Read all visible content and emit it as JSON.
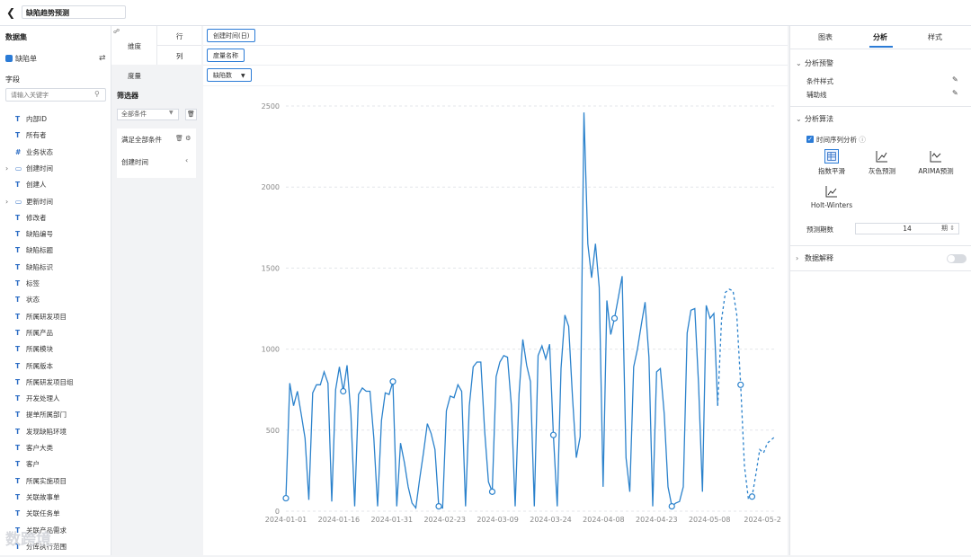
{
  "header": {
    "title": "缺陷趋势预测"
  },
  "left": {
    "dataset_title": "数据集",
    "dataset_name": "缺陷单",
    "fields_title": "字段",
    "search_placeholder": "请输入关键字",
    "fields": [
      {
        "icon": "T",
        "name": "内部ID",
        "caret": ""
      },
      {
        "icon": "T",
        "name": "所有者",
        "caret": ""
      },
      {
        "icon": "#",
        "name": "业务状态",
        "caret": ""
      },
      {
        "icon": "▭",
        "name": "创建时间",
        "caret": "›"
      },
      {
        "icon": "T",
        "name": "创建人",
        "caret": ""
      },
      {
        "icon": "▭",
        "name": "更新时间",
        "caret": "›"
      },
      {
        "icon": "T",
        "name": "修改者",
        "caret": ""
      },
      {
        "icon": "T",
        "name": "缺陷编号",
        "caret": ""
      },
      {
        "icon": "T",
        "name": "缺陷标题",
        "caret": ""
      },
      {
        "icon": "T",
        "name": "缺陷标识",
        "caret": ""
      },
      {
        "icon": "T",
        "name": "标签",
        "caret": ""
      },
      {
        "icon": "T",
        "name": "状态",
        "caret": ""
      },
      {
        "icon": "T",
        "name": "所属研发项目",
        "caret": ""
      },
      {
        "icon": "T",
        "name": "所属产品",
        "caret": ""
      },
      {
        "icon": "T",
        "name": "所属模块",
        "caret": ""
      },
      {
        "icon": "T",
        "name": "所属版本",
        "caret": ""
      },
      {
        "icon": "T",
        "name": "所属研发项目组",
        "caret": ""
      },
      {
        "icon": "T",
        "name": "开发处理人",
        "caret": ""
      },
      {
        "icon": "T",
        "name": "提单所属部门",
        "caret": ""
      },
      {
        "icon": "T",
        "name": "发现缺陷环境",
        "caret": ""
      },
      {
        "icon": "T",
        "name": "客户大类",
        "caret": ""
      },
      {
        "icon": "T",
        "name": "客户",
        "caret": ""
      },
      {
        "icon": "T",
        "name": "所属实施项目",
        "caret": ""
      },
      {
        "icon": "T",
        "name": "关联故事单",
        "caret": ""
      },
      {
        "icon": "T",
        "name": "关联任务单",
        "caret": ""
      },
      {
        "icon": "T",
        "name": "关联产品需求",
        "caret": ""
      },
      {
        "icon": "T",
        "name": "分库执行范围",
        "caret": ""
      }
    ]
  },
  "mid": {
    "dimension": "维度",
    "row": "行",
    "col": "列",
    "measure": "度量",
    "filter_title": "筛选器",
    "filter_select": "全部条件",
    "cond1": "满足全部条件",
    "cond2": "创建时间"
  },
  "pills": {
    "row": "创建时间(日)",
    "col": "度量名称",
    "measure": "缺陷数"
  },
  "right": {
    "tabs": [
      "图表",
      "分析",
      "样式"
    ],
    "sec1": "分析预警",
    "item_style": "条件样式",
    "item_aux": "辅助线",
    "sec2": "分析算法",
    "ts_label": "时间序列分析",
    "algos": [
      "指数平滑",
      "灰色预测",
      "ARIMA预测",
      "Holt-Winters"
    ],
    "period_label": "预测期数",
    "period_value": "14",
    "period_unit": "期",
    "sec3": "数据解释"
  },
  "watermark": "数跨境",
  "chart_data": {
    "type": "line",
    "x_tick_labels": [
      "2024-01-01",
      "2024-01-16",
      "2024-01-31",
      "2024-02-23",
      "2024-03-09",
      "2024-03-24",
      "2024-04-08",
      "2024-04-23",
      "2024-05-08",
      "2024-05-2"
    ],
    "y_ticks": [
      0,
      500,
      1000,
      1500,
      2000,
      2500
    ],
    "ylim": [
      0,
      2500
    ],
    "n_points": 129,
    "series": [
      {
        "values": [
          80,
          790,
          650,
          740,
          600,
          450,
          70,
          730,
          780,
          780,
          860,
          790,
          60,
          750,
          890,
          740,
          900,
          600,
          30,
          720,
          760,
          740,
          740,
          450,
          30,
          560,
          730,
          720,
          800,
          30,
          420,
          300,
          150,
          50,
          20,
          200,
          360,
          540,
          480,
          380,
          30,
          20,
          620,
          710,
          700,
          780,
          740,
          30,
          650,
          890,
          920,
          920,
          500,
          180,
          120,
          830,
          920,
          960,
          950,
          650,
          30,
          720,
          1060,
          900,
          800,
          30,
          960,
          1020,
          940,
          1030,
          470,
          30,
          880,
          1210,
          1140,
          700,
          330,
          460,
          2460,
          1650,
          1440,
          1650,
          1380,
          150,
          1300,
          1090,
          1190,
          1320,
          1450,
          330,
          120,
          890,
          1000,
          1150,
          1290,
          950,
          30,
          860,
          880,
          600,
          150,
          30,
          50,
          60,
          150,
          1100,
          1240,
          1250,
          780,
          120,
          1270,
          1190,
          1220,
          650,
          1180,
          1350,
          1370,
          1360,
          1210,
          780,
          280,
          80,
          90,
          230,
          380,
          360,
          420,
          440,
          460
        ],
        "marked": [
          0,
          15,
          28,
          40,
          54,
          70,
          86,
          101,
          119,
          122
        ],
        "forecast_start": 113
      }
    ]
  }
}
